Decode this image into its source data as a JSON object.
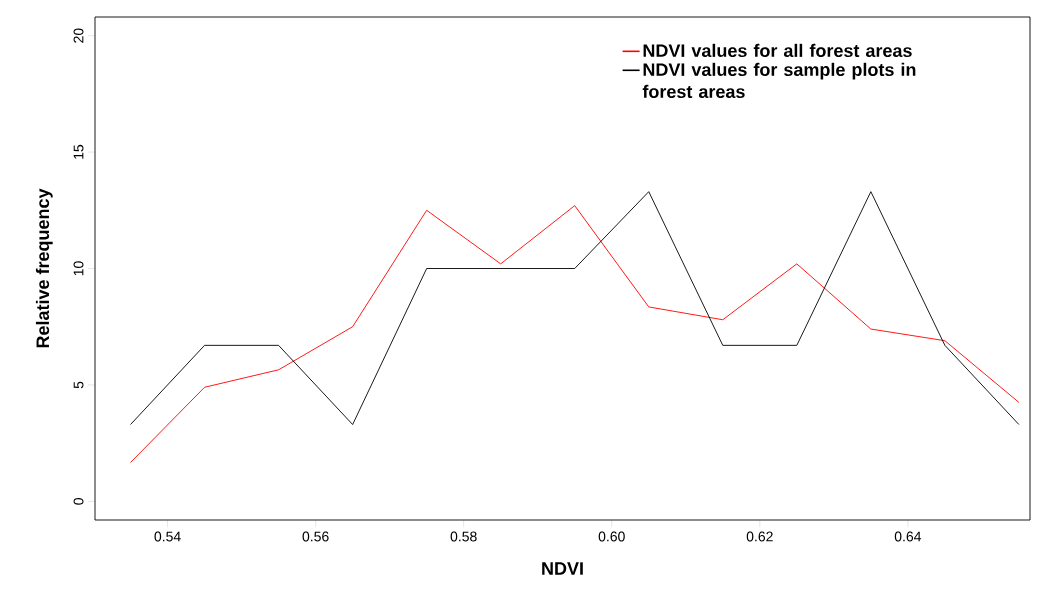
{
  "chart_data": {
    "type": "line",
    "xlabel": "NDVI",
    "ylabel": "Relative frequency",
    "x": [
      0.535,
      0.545,
      0.555,
      0.565,
      0.575,
      0.585,
      0.595,
      0.605,
      0.615,
      0.625,
      0.635,
      0.645,
      0.655
    ],
    "series": [
      {
        "name": "NDVI values for all forest areas",
        "color": "#ff0000",
        "values": [
          1.67,
          4.9,
          5.65,
          7.5,
          12.5,
          10.2,
          12.7,
          8.35,
          7.8,
          10.2,
          7.4,
          6.9,
          4.25
        ]
      },
      {
        "name": "NDVI values for sample plots in forest areas",
        "color": "#000000",
        "values": [
          3.3,
          6.7,
          6.7,
          3.3,
          10,
          10,
          10,
          13.3,
          6.7,
          6.7,
          13.3,
          6.7,
          3.3
        ]
      }
    ],
    "xlim": [
      0.5302,
      0.6565
    ],
    "ylim": [
      -0.8,
      20.8
    ],
    "xticks": [
      {
        "value": 0.54,
        "label": "0.54"
      },
      {
        "value": 0.56,
        "label": "0.56"
      },
      {
        "value": 0.58,
        "label": "0.58"
      },
      {
        "value": 0.6,
        "label": "0.60"
      },
      {
        "value": 0.62,
        "label": "0.62"
      },
      {
        "value": 0.64,
        "label": "0.64"
      }
    ],
    "yticks": [
      0,
      5,
      10,
      15,
      20
    ],
    "legend": "top right",
    "grid": false,
    "marker": "none",
    "line_style": "solid"
  }
}
